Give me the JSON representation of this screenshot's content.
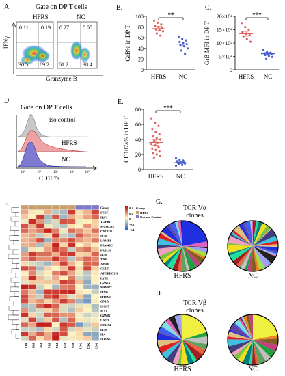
{
  "panels": {
    "A": {
      "letter": "A.",
      "title": "Gate on DP T cells",
      "groups": [
        "HFRS",
        "NC"
      ],
      "xlabel": "Granzyme B",
      "ylabel": "IFNγ",
      "quadrants": {
        "HFRS": {
          "ul": "0.11",
          "ur": "0.19",
          "ll": "30.5",
          "lr": "69.2"
        },
        "NC": {
          "ul": "0.27",
          "ur": "0.05",
          "ll": "61.2",
          "lr": "38.4"
        }
      }
    },
    "B": {
      "letter": "B.",
      "significance": "**"
    },
    "C": {
      "letter": "C.",
      "significance": "***"
    },
    "D": {
      "letter": "D.",
      "title": "Gate on DP T cells",
      "labels": [
        "iso control",
        "HFRS",
        "NC"
      ],
      "xlabel": "CD107a",
      "colors": {
        "iso": "#bdbdbd",
        "hfrs": "#e07070",
        "nc": "#6a6ac8"
      }
    },
    "E": {
      "letter": "E.",
      "significance": "***"
    },
    "F": {
      "letter": "F.",
      "genes": [
        "Group",
        "STAT1",
        "IRF1",
        "TGFB1",
        "MCOLN2",
        "CXCL11",
        "IL10",
        "LAMP1",
        "FAM46C",
        "FASLG",
        "IL16",
        "TNF",
        "ADAR",
        "CCL5",
        "APOBEC3G",
        "LY6E",
        "GZMA",
        "NAMPT",
        "IFNG",
        "IFITM3",
        "GNLY",
        "ISG15",
        "MX1",
        "GZMB",
        "LAG3",
        "CTLA4",
        "IL18",
        "IL4",
        "IFITM2"
      ],
      "samples": [
        "P18",
        "P08",
        "P07",
        "P12",
        "P14",
        "P23",
        "P26",
        "NC1",
        "NC2",
        "NC3"
      ],
      "scale_ticks": [
        "0.4",
        "0.2",
        "0",
        "-0.2",
        "-0.4"
      ],
      "legend_title": "Group",
      "legend_items": [
        "HFRS",
        "Normal Control"
      ]
    },
    "G": {
      "letter": "G.",
      "title": "TCR Vα",
      "subtitle": "clones",
      "labels": [
        "HFRS",
        "NC"
      ]
    },
    "H": {
      "letter": "H.",
      "title": "TCR Vβ",
      "subtitle": "clones",
      "labels": [
        "HFRS",
        "NC"
      ]
    }
  },
  "chart_data": [
    {
      "type": "scatter",
      "panel": "B",
      "categories": [
        "HFRS",
        "NC"
      ],
      "ylabel": "GrB% in DP T",
      "ylim": [
        0,
        100
      ],
      "yticks": [
        "0",
        "20",
        "40",
        "60",
        "80",
        "100"
      ],
      "series": [
        {
          "values": [
            92,
            88,
            85,
            82,
            80,
            78,
            76,
            74,
            72,
            68,
            64
          ],
          "mean": 77,
          "sem": 4,
          "color": "#e0605a"
        },
        {
          "values": [
            62,
            58,
            55,
            52,
            50,
            48,
            46,
            44,
            40,
            36,
            30
          ],
          "mean": 48,
          "sem": 4,
          "color": "#4a5ec8"
        }
      ]
    },
    {
      "type": "scatter",
      "panel": "C",
      "categories": [
        "HFRS",
        "NC"
      ],
      "ylabel": "GrB MFI in DP T",
      "ylim": [
        0,
        200000
      ],
      "yticks": [
        "0",
        "5×10⁴",
        "10×10⁴",
        "15×10⁴",
        "20×10⁴"
      ],
      "series": [
        {
          "values": [
            175000,
            160000,
            150000,
            140000,
            135000,
            130000,
            125000,
            115000,
            105000
          ],
          "mean": 135000,
          "sem": 9000,
          "color": "#e0605a"
        },
        {
          "values": [
            75000,
            68000,
            64000,
            62000,
            60000,
            58000,
            55000,
            52000,
            48000,
            40000
          ],
          "mean": 60000,
          "sem": 4000,
          "color": "#4a5ec8"
        }
      ]
    },
    {
      "type": "scatter",
      "panel": "E",
      "categories": [
        "HFRS",
        "NC"
      ],
      "ylabel": "CD107a% in DP T",
      "ylim": [
        0,
        80
      ],
      "yticks": [
        "0",
        "20",
        "40",
        "60",
        "80"
      ],
      "series": [
        {
          "values": [
            68,
            62,
            58,
            54,
            50,
            47,
            44,
            42,
            40,
            38,
            36,
            34,
            32,
            30,
            28,
            26,
            24,
            22,
            20,
            18,
            16
          ],
          "mean": 36,
          "sem": 4,
          "color": "#e0605a"
        },
        {
          "values": [
            15,
            13,
            12,
            11,
            10,
            10,
            9,
            9,
            8,
            7,
            6,
            5
          ],
          "mean": 9,
          "sem": 1,
          "color": "#4a5ec8"
        }
      ]
    }
  ]
}
